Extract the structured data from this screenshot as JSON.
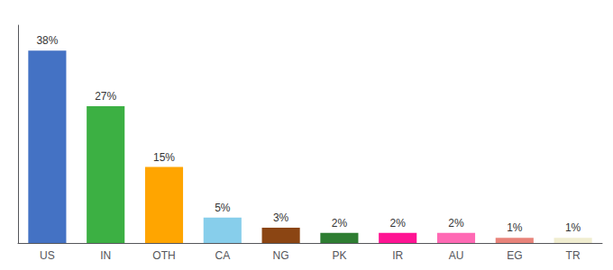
{
  "chart_data": {
    "type": "bar",
    "categories": [
      "US",
      "IN",
      "OTH",
      "CA",
      "NG",
      "PK",
      "IR",
      "AU",
      "EG",
      "TR"
    ],
    "values": [
      38,
      27,
      15,
      5,
      3,
      2,
      2,
      2,
      1,
      1
    ],
    "value_labels": [
      "38%",
      "27%",
      "15%",
      "5%",
      "3%",
      "2%",
      "2%",
      "2%",
      "1%",
      "1%"
    ],
    "colors": [
      "#4472C4",
      "#3CB043",
      "#FFA500",
      "#87CEEB",
      "#8B4513",
      "#2E7D32",
      "#FF1493",
      "#FF69B4",
      "#E8837A",
      "#F0EDD0"
    ],
    "ylim": [
      0,
      43
    ],
    "grid": false,
    "data_labels": true,
    "tick_labels": "x"
  }
}
